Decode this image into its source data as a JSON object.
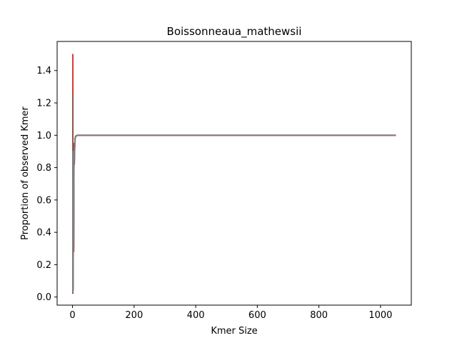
{
  "chart_data": {
    "type": "line",
    "title": "Boissonneaua_mathewsii",
    "xlabel": "Kmer Size",
    "ylabel": "Proportion of observed Kmer",
    "xlim": [
      -50,
      1100
    ],
    "ylim": [
      -0.05,
      1.58
    ],
    "xticks": [
      0,
      200,
      400,
      600,
      800,
      1000
    ],
    "yticks": [
      0.0,
      0.2,
      0.4,
      0.6,
      0.8,
      1.0,
      1.2,
      1.4
    ],
    "grid": false,
    "legend": "none",
    "series": [
      {
        "color": "#d62728",
        "x": [
          1,
          1,
          2,
          3,
          4,
          5,
          6,
          8,
          10,
          15,
          20,
          50,
          100,
          500,
          1000,
          1050
        ],
        "y": [
          0.02,
          1.5,
          0.05,
          0.6,
          0.28,
          0.95,
          0.82,
          0.97,
          0.99,
          1.0,
          1.0,
          1.0,
          1.0,
          1.0,
          1.0,
          1.0
        ]
      },
      {
        "color": "#8c564b",
        "x": [
          1,
          1,
          2,
          3,
          4,
          5,
          6,
          8,
          10,
          15,
          20,
          50,
          100,
          500,
          1000,
          1050
        ],
        "y": [
          0.02,
          1.25,
          0.04,
          0.55,
          0.3,
          0.93,
          0.84,
          0.98,
          0.995,
          1.0,
          1.0,
          1.0,
          1.0,
          1.0,
          1.0,
          1.0
        ]
      },
      {
        "color": "#7f7f7f",
        "x": [
          1,
          1,
          2,
          3,
          4,
          5,
          6,
          8,
          10,
          15,
          20,
          50,
          100,
          500,
          1000,
          1050
        ],
        "y": [
          0.03,
          0.9,
          0.05,
          0.5,
          0.35,
          0.9,
          0.85,
          0.97,
          0.99,
          1.0,
          1.0,
          1.0,
          1.0,
          1.0,
          1.0,
          1.0
        ]
      }
    ]
  }
}
